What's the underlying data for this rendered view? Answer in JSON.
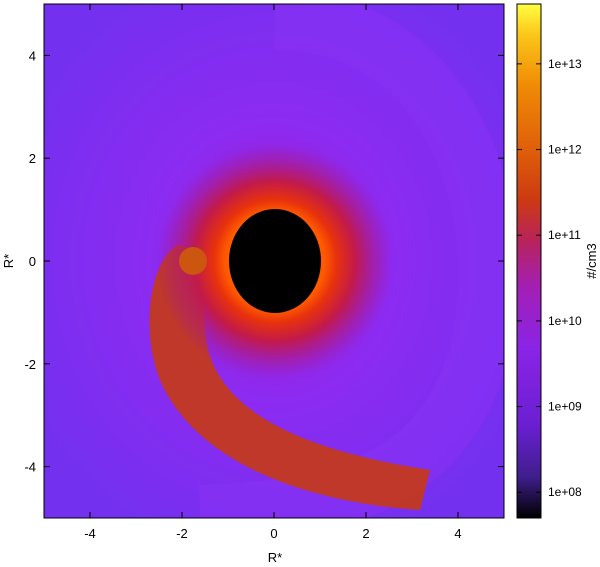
{
  "chart_data": {
    "type": "heatmap",
    "title": "",
    "xlabel": "R*",
    "ylabel": "R*",
    "xlim": [
      -5,
      5
    ],
    "ylim": [
      -5,
      5
    ],
    "x_ticks": [
      -4,
      -2,
      0,
      2,
      4
    ],
    "y_ticks": [
      -4,
      -2,
      0,
      2,
      4
    ],
    "grid": false,
    "colorbar": {
      "label": "#/cm3",
      "scale": "log",
      "range": [
        50000000.0,
        50000000000000.0
      ],
      "ticks": [
        {
          "value": 100000000.0,
          "label": "1e+08"
        },
        {
          "value": 1000000000.0,
          "label": "1e+09"
        },
        {
          "value": 10000000000.0,
          "label": "1e+10"
        },
        {
          "value": 100000000000.0,
          "label": "1e+11"
        },
        {
          "value": 1000000000000.0,
          "label": "1e+12"
        },
        {
          "value": 10000000000000.0,
          "label": "1e+13"
        }
      ],
      "colormap": [
        "#000000",
        "#3f1e8c",
        "#6a1fd2",
        "#8a24e6",
        "#a31fb4",
        "#b8235a",
        "#cc3a12",
        "#e0600a",
        "#f08a05",
        "#fbc61a",
        "#ffff40"
      ]
    },
    "features": [
      {
        "name": "central-star",
        "type": "ellipse",
        "center": [
          0,
          0
        ],
        "radius": [
          1.0,
          1.0
        ],
        "color": "#000000"
      },
      {
        "name": "companion",
        "type": "circle",
        "center": [
          -1.7,
          0
        ],
        "radius": 0.3,
        "color": "#cc5510"
      },
      {
        "name": "spiral-tail",
        "type": "spiral",
        "start_angle_deg": 180,
        "end_angle_deg": 290,
        "start_radius": 2.0,
        "end_radius": 4.6,
        "color": "#c43a1a"
      }
    ]
  }
}
